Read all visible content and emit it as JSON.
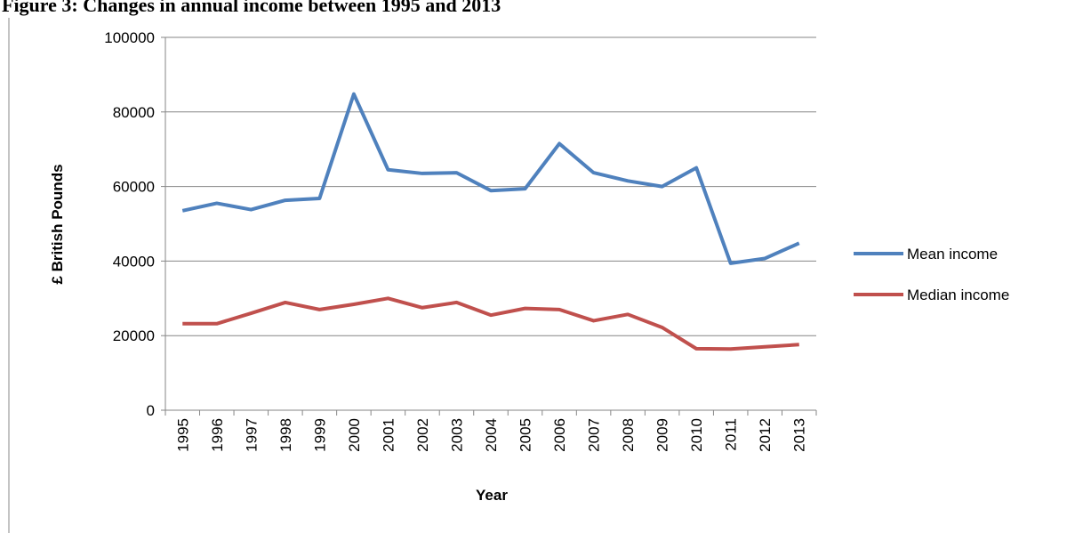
{
  "chart_data": {
    "type": "line",
    "title": "Figure 3: Changes in annual income between 1995 and 2013",
    "x_label": "Year",
    "y_label": "£ British Pounds",
    "categories": [
      "1995",
      "1996",
      "1997",
      "1998",
      "1999",
      "2000",
      "2001",
      "2002",
      "2003",
      "2004",
      "2005",
      "2006",
      "2007",
      "2008",
      "2009",
      "2010",
      "2011",
      "2012",
      "2013"
    ],
    "series": [
      {
        "name": "Mean income",
        "color": "#4f81bd",
        "values": [
          53500,
          55500,
          53800,
          56300,
          56800,
          84800,
          64500,
          63500,
          63700,
          58900,
          59400,
          71500,
          63700,
          61500,
          60000,
          65000,
          39400,
          40700,
          44800
        ]
      },
      {
        "name": "Median income",
        "color": "#c0504d",
        "values": [
          23200,
          23200,
          26000,
          28900,
          27000,
          28400,
          30000,
          27500,
          28900,
          25500,
          27300,
          27000,
          24000,
          25700,
          22200,
          16500,
          16400,
          17000,
          17600
        ]
      }
    ],
    "ylim": [
      0,
      100000
    ],
    "yticks": [
      0,
      20000,
      40000,
      60000,
      80000,
      100000
    ],
    "grid": true,
    "legend": "right"
  }
}
